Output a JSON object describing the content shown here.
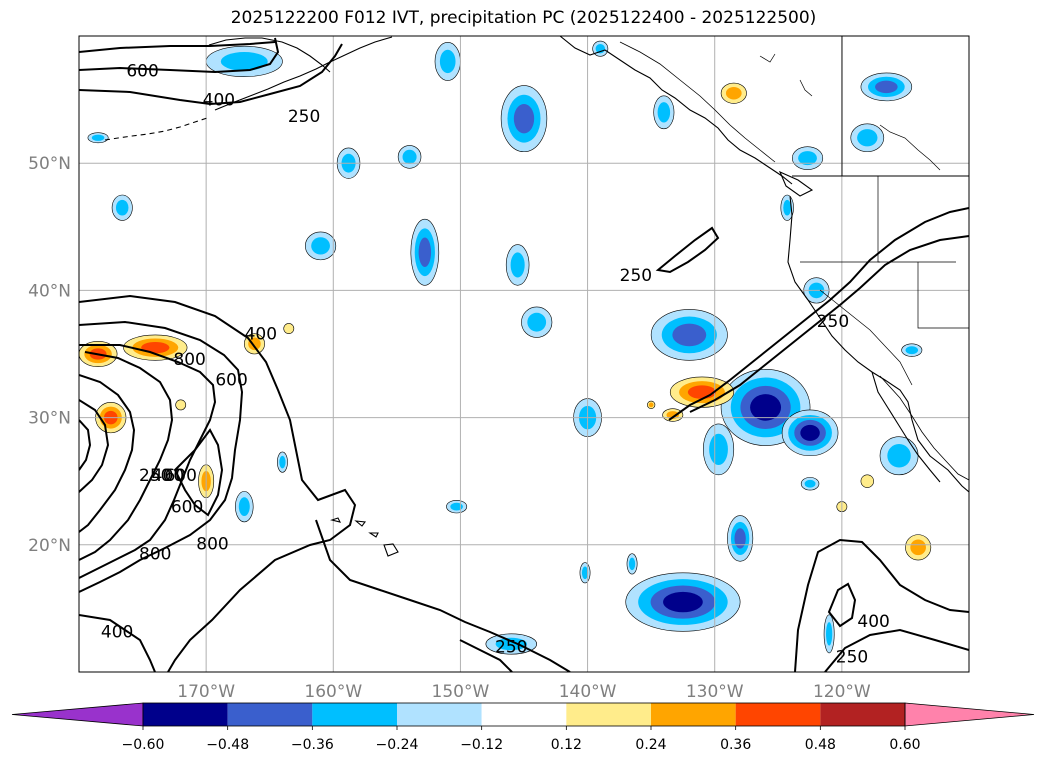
{
  "title": "2025122200 F012 IVT, precipitation PC (2025122400 - 2025122500)",
  "map": {
    "lon_range": [
      -180,
      -110
    ],
    "lat_range": [
      10,
      60
    ],
    "lat_ticks": [
      {
        "value": 20,
        "label": "20°N"
      },
      {
        "value": 30,
        "label": "30°N"
      },
      {
        "value": 40,
        "label": "40°N"
      },
      {
        "value": 50,
        "label": "50°N"
      }
    ],
    "lon_ticks": [
      {
        "value": -170,
        "label": "170°W"
      },
      {
        "value": -160,
        "label": "160°W"
      },
      {
        "value": -150,
        "label": "150°W"
      },
      {
        "value": -140,
        "label": "140°W"
      },
      {
        "value": -130,
        "label": "130°W"
      },
      {
        "value": -120,
        "label": "120°W"
      }
    ],
    "grid": true,
    "ivt_contour_levels": [
      250,
      400,
      600,
      800
    ],
    "contour_labels": [
      {
        "text": "600",
        "lon": -175,
        "lat": 57.3
      },
      {
        "text": "400",
        "lon": -169,
        "lat": 55.0
      },
      {
        "text": "250",
        "lon": -162.3,
        "lat": 53.7
      },
      {
        "text": "250",
        "lon": -136.2,
        "lat": 41.2
      },
      {
        "text": "250",
        "lon": -120.7,
        "lat": 37.6
      },
      {
        "text": "400",
        "lon": -165.7,
        "lat": 36.6
      },
      {
        "text": "800",
        "lon": -171.3,
        "lat": 34.6
      },
      {
        "text": "600",
        "lon": -168,
        "lat": 33.0
      },
      {
        "text": "250",
        "lon": -174,
        "lat": 25.5
      },
      {
        "text": "400",
        "lon": -173,
        "lat": 25.5
      },
      {
        "text": "600",
        "lon": -172,
        "lat": 25.5
      },
      {
        "text": "600",
        "lon": -171.5,
        "lat": 23.0
      },
      {
        "text": "800",
        "lon": -169.5,
        "lat": 20.1
      },
      {
        "text": "800",
        "lon": -174,
        "lat": 19.3
      },
      {
        "text": "400",
        "lon": -177,
        "lat": 13.2
      },
      {
        "text": "250",
        "lon": -146,
        "lat": 12.0
      },
      {
        "text": "250",
        "lon": -119.2,
        "lat": 11.2
      },
      {
        "text": "400",
        "lon": -117.5,
        "lat": 14.0
      }
    ]
  },
  "colorbar": {
    "labels": [
      "−0.60",
      "−0.48",
      "−0.36",
      "−0.24",
      "−0.12",
      "0.12",
      "0.24",
      "0.36",
      "0.48",
      "0.60"
    ],
    "colors": [
      "#9932cc",
      "#00008b",
      "#3a5fcd",
      "#00bfff",
      "#b0e2ff",
      "#ffffff",
      "#ffec8b",
      "#ffa500",
      "#ff4500",
      "#b22222",
      "#ff82ab"
    ],
    "extend": "both"
  },
  "precip_pc_patches": [
    {
      "lon": -132.5,
      "lat": 15.5,
      "rlon": 4.5,
      "rlat": 2.3,
      "value": -0.48
    },
    {
      "lon": -126.0,
      "lat": 30.8,
      "rlon": 3.5,
      "rlat": 3.0,
      "value": -0.48
    },
    {
      "lon": -122.5,
      "lat": 28.8,
      "rlon": 2.2,
      "rlat": 1.8,
      "value": -0.48
    },
    {
      "lon": -132.0,
      "lat": 36.5,
      "rlon": 3.0,
      "rlat": 2.0,
      "value": -0.36
    },
    {
      "lon": -128.0,
      "lat": 20.5,
      "rlon": 1.0,
      "rlat": 1.8,
      "value": -0.36
    },
    {
      "lon": -145.0,
      "lat": 53.5,
      "rlon": 1.8,
      "rlat": 2.6,
      "value": -0.36
    },
    {
      "lon": -152.8,
      "lat": 43.0,
      "rlon": 1.1,
      "rlat": 2.6,
      "value": -0.36
    },
    {
      "lon": -116.5,
      "lat": 56.0,
      "rlon": 2.0,
      "rlat": 1.1,
      "value": -0.36
    },
    {
      "lon": -115.5,
      "lat": 27.0,
      "rlon": 1.5,
      "rlat": 1.5,
      "value": -0.24
    },
    {
      "lon": -145.5,
      "lat": 42.0,
      "rlon": 0.9,
      "rlat": 1.6,
      "value": -0.24
    },
    {
      "lon": -144.0,
      "lat": 37.5,
      "rlon": 1.2,
      "rlat": 1.2,
      "value": -0.24
    },
    {
      "lon": -140.0,
      "lat": 30.0,
      "rlon": 1.1,
      "rlat": 1.5,
      "value": -0.24
    },
    {
      "lon": -158.8,
      "lat": 50.0,
      "rlon": 0.9,
      "rlat": 1.2,
      "value": -0.24
    },
    {
      "lon": -154.0,
      "lat": 50.5,
      "rlon": 0.9,
      "rlat": 0.9,
      "value": -0.24
    },
    {
      "lon": -122.7,
      "lat": 50.4,
      "rlon": 1.2,
      "rlat": 0.9,
      "value": -0.24
    },
    {
      "lon": -118.0,
      "lat": 52.0,
      "rlon": 1.3,
      "rlat": 1.1,
      "value": -0.24
    },
    {
      "lon": -122.0,
      "lat": 40.0,
      "rlon": 1.0,
      "rlat": 1.0,
      "value": -0.24
    },
    {
      "lon": -176.6,
      "lat": 46.5,
      "rlon": 0.8,
      "rlat": 1.0,
      "value": -0.24
    },
    {
      "lon": -167.0,
      "lat": 58.0,
      "rlon": 3.0,
      "rlat": 1.2,
      "value": -0.24
    },
    {
      "lon": -151.0,
      "lat": 58.0,
      "rlon": 1.0,
      "rlat": 1.5,
      "value": -0.24
    },
    {
      "lon": -139.0,
      "lat": 59.0,
      "rlon": 0.6,
      "rlat": 0.6,
      "value": -0.24
    },
    {
      "lon": -134.0,
      "lat": 54.0,
      "rlon": 0.8,
      "rlat": 1.3,
      "value": -0.24
    },
    {
      "lon": -146.0,
      "lat": 12.2,
      "rlon": 2.0,
      "rlat": 0.8,
      "value": -0.24
    },
    {
      "lon": -121.0,
      "lat": 13.0,
      "rlon": 0.4,
      "rlat": 1.5,
      "value": -0.24
    },
    {
      "lon": -129.7,
      "lat": 27.5,
      "rlon": 1.2,
      "rlat": 2.0,
      "value": -0.24
    },
    {
      "lon": -114.5,
      "lat": 35.3,
      "rlon": 0.8,
      "rlat": 0.5,
      "value": -0.24
    },
    {
      "lon": -161.0,
      "lat": 43.5,
      "rlon": 1.2,
      "rlat": 1.1,
      "value": -0.24
    },
    {
      "lon": -140.2,
      "lat": 17.8,
      "rlon": 0.4,
      "rlat": 0.8,
      "value": -0.24
    },
    {
      "lon": -124.3,
      "lat": 46.5,
      "rlon": 0.5,
      "rlat": 1.0,
      "value": -0.24
    },
    {
      "lon": -167.0,
      "lat": 23.0,
      "rlon": 0.7,
      "rlat": 1.2,
      "value": -0.24
    },
    {
      "lon": -164.0,
      "lat": 26.5,
      "rlon": 0.4,
      "rlat": 0.8,
      "value": -0.24
    },
    {
      "lon": -150.3,
      "lat": 23.0,
      "rlon": 0.8,
      "rlat": 0.5,
      "value": -0.24
    },
    {
      "lon": -136.5,
      "lat": 18.5,
      "rlon": 0.4,
      "rlat": 0.8,
      "value": -0.24
    },
    {
      "lon": -122.5,
      "lat": 24.8,
      "rlon": 0.7,
      "rlat": 0.5,
      "value": -0.24
    },
    {
      "lon": -178.5,
      "lat": 52.0,
      "rlon": 0.8,
      "rlat": 0.4,
      "value": -0.24
    },
    {
      "lon": -178.5,
      "lat": 35.0,
      "rlon": 1.5,
      "rlat": 1.0,
      "value": 0.36
    },
    {
      "lon": -174.0,
      "lat": 35.5,
      "rlon": 2.5,
      "rlat": 1.0,
      "value": 0.36
    },
    {
      "lon": -177.5,
      "lat": 30.0,
      "rlon": 1.2,
      "rlat": 1.2,
      "value": 0.36
    },
    {
      "lon": -131.0,
      "lat": 32.0,
      "rlon": 2.5,
      "rlat": 1.2,
      "value": 0.36
    },
    {
      "lon": -170.0,
      "lat": 25.0,
      "rlon": 0.6,
      "rlat": 1.3,
      "value": 0.24
    },
    {
      "lon": -166.2,
      "lat": 35.8,
      "rlon": 0.8,
      "rlat": 0.8,
      "value": 0.24
    },
    {
      "lon": -133.3,
      "lat": 30.2,
      "rlon": 0.8,
      "rlat": 0.5,
      "value": 0.24
    },
    {
      "lon": -135.0,
      "lat": 31.0,
      "rlon": 0.3,
      "rlat": 0.3,
      "value": 0.24
    },
    {
      "lon": -128.5,
      "lat": 55.5,
      "rlon": 1.0,
      "rlat": 0.8,
      "value": 0.24
    },
    {
      "lon": -114.0,
      "lat": 19.8,
      "rlon": 1.0,
      "rlat": 1.0,
      "value": 0.24
    },
    {
      "lon": -118.0,
      "lat": 25.0,
      "rlon": 0.5,
      "rlat": 0.5,
      "value": 0.12
    },
    {
      "lon": -120.0,
      "lat": 23.0,
      "rlon": 0.4,
      "rlat": 0.4,
      "value": 0.12
    },
    {
      "lon": -163.5,
      "lat": 37.0,
      "rlon": 0.4,
      "rlat": 0.4,
      "value": 0.12
    },
    {
      "lon": -172.0,
      "lat": 31.0,
      "rlon": 0.4,
      "rlat": 0.4,
      "value": 0.12
    }
  ]
}
